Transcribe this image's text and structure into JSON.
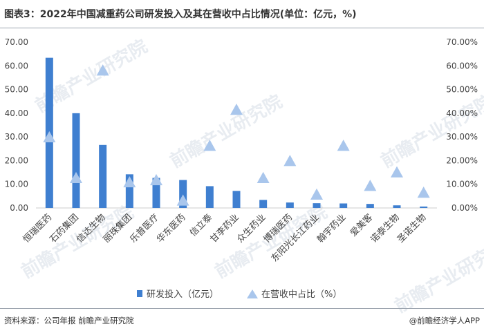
{
  "header": {
    "title": "图表3：2022年中国减重药公司研发投入及其在营收中占比情况(单位：亿元，%)"
  },
  "footer": {
    "source": "资料来源：公司年报 前瞻产业研究院",
    "brand": "@前瞻经济学人APP"
  },
  "watermark": {
    "text": "前瞻产业研究院"
  },
  "colors": {
    "bar": "#3f7fd0",
    "triangle": "#a9c6ec",
    "axis": "#cccccc"
  },
  "chart_data": {
    "type": "bar",
    "categories": [
      "恒瑞医药",
      "石药集团",
      "信达生物",
      "丽珠集团",
      "乐普医疗",
      "华东医药",
      "信立泰",
      "甘李药业",
      "众生药业",
      "博瑞医药",
      "东阳光长江药业",
      "翰宇药业",
      "爱美客",
      "诺泰生物",
      "圣诺生物"
    ],
    "series": [
      {
        "name": "研发投入（亿元）",
        "type": "bar",
        "axis": "left",
        "values": [
          63.4,
          40.0,
          26.6,
          14.2,
          12.7,
          11.8,
          9.2,
          7.2,
          3.4,
          2.3,
          2.0,
          1.9,
          1.7,
          1.1,
          0.6
        ]
      },
      {
        "name": "在营收中占比（%）",
        "type": "triangle",
        "axis": "right",
        "values": [
          29.8,
          12.6,
          58.0,
          10.8,
          11.7,
          3.1,
          26.2,
          41.4,
          12.6,
          19.8,
          5.6,
          26.2,
          9.3,
          15.0,
          6.4
        ]
      }
    ],
    "y_left": {
      "ticks": [
        "0.00",
        "10.00",
        "20.00",
        "30.00",
        "40.00",
        "50.00",
        "60.00",
        "70.00"
      ],
      "ylim": [
        0,
        70
      ]
    },
    "y_right": {
      "ticks": [
        "0.00%",
        "10.00%",
        "20.00%",
        "30.00%",
        "40.00%",
        "50.00%",
        "60.00%",
        "70.00%"
      ],
      "ylim": [
        0,
        70
      ]
    },
    "grid": false,
    "legend": "bottom-center"
  }
}
